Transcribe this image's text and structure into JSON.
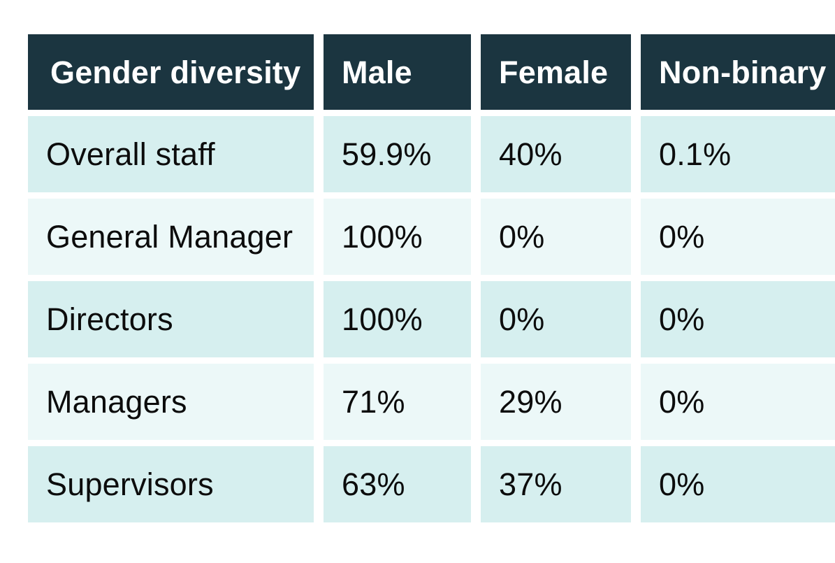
{
  "chart_data": {
    "type": "table",
    "title": "Gender diversity",
    "columns": [
      "Gender diversity",
      "Male",
      "Female",
      "Non-binary"
    ],
    "categories": [
      "Overall staff",
      "General Manager",
      "Directors",
      "Managers",
      "Supervisors"
    ],
    "rows": [
      {
        "cells": [
          "Overall staff",
          "59.9%",
          "40%",
          "0.1%"
        ]
      },
      {
        "cells": [
          "General Manager",
          "100%",
          "0%",
          "0%"
        ]
      },
      {
        "cells": [
          "Directors",
          "100%",
          "0%",
          "0%"
        ]
      },
      {
        "cells": [
          "Managers",
          "71%",
          "29%",
          "0%"
        ]
      },
      {
        "cells": [
          "Supervisors",
          "63%",
          "37%",
          "0%"
        ]
      }
    ],
    "series": [
      {
        "name": "Male",
        "values": [
          59.9,
          100,
          100,
          71,
          63
        ]
      },
      {
        "name": "Female",
        "values": [
          40,
          0,
          0,
          29,
          37
        ]
      },
      {
        "name": "Non-binary",
        "values": [
          0.1,
          0,
          0,
          0,
          0
        ]
      }
    ],
    "legend_position": "none",
    "grid": false
  },
  "colors": {
    "header_bg": "#1b3540",
    "header_text": "#ffffff",
    "row_odd_bg": "#d6efef",
    "row_even_bg": "#ecf8f8",
    "body_text": "#0c0c0c",
    "canvas_bg": "#ffffff"
  }
}
